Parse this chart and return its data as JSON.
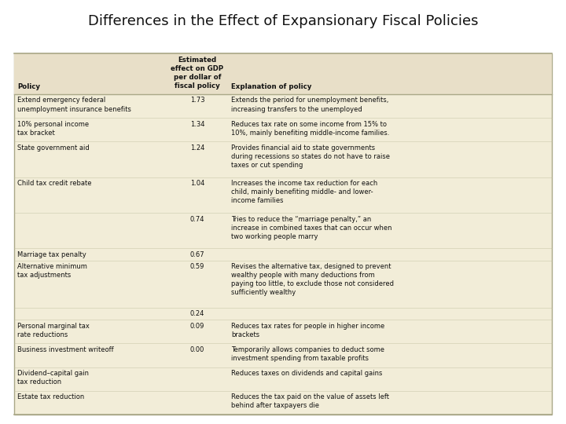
{
  "title": "Differences in the Effect of Expansionary Fiscal Policies",
  "title_fontsize": 13,
  "background_color": "#ffffff",
  "header_bg": "#e8dfc8",
  "table_bg": "#f2edd8",
  "col1_header": "Policy",
  "col2_header": "Estimated\neffect on GDP\nper dollar of\nfiscal policy",
  "col3_header": "Explanation of policy",
  "rows": [
    {
      "policy": "Extend emergency federal\nunemployment insurance benefits",
      "value": "1.73",
      "explanation": "Extends the period for unemployment benefits,\nincreasing transfers to the unemployed"
    },
    {
      "policy": "10% personal income\ntax bracket",
      "value": "1.34",
      "explanation": "Reduces tax rate on some income from 15% to\n10%, mainly benefiting middle-income families."
    },
    {
      "policy": "State government aid",
      "value": "1.24",
      "explanation": "Provides financial aid to state governments\nduring recessions so states do not have to raise\ntaxes or cut spending"
    },
    {
      "policy": "Child tax credit rebate",
      "value": "1.04",
      "explanation": "Increases the income tax reduction for each\nchild, mainly benefiting middle- and lower-\nincome families"
    },
    {
      "policy": "",
      "value": "0.74",
      "explanation": "Tries to reduce the “marriage penalty,” an\nincrease in combined taxes that can occur when\ntwo working people marry"
    },
    {
      "policy": "Marriage tax penalty",
      "value": "0.67",
      "explanation": ""
    },
    {
      "policy": "Alternative minimum\ntax adjustments",
      "value": "0.59",
      "explanation": "Revises the alternative tax, designed to prevent\nwealthy people with many deductions from\npaying too little, to exclude those not considered\nsufficiently wealthy"
    },
    {
      "policy": "",
      "value": "0.24",
      "explanation": ""
    },
    {
      "policy": "Personal marginal tax\nrate reductions",
      "value": "0.09",
      "explanation": "Reduces tax rates for people in higher income\nbrackets"
    },
    {
      "policy": "Business investment writeoff",
      "value": "0.00",
      "explanation": "Temporarily allows companies to deduct some\ninvestment spending from taxable profits"
    },
    {
      "policy": "Dividend–capital gain\ntax reduction",
      "value": "",
      "explanation": "Reduces taxes on dividends and capital gains"
    },
    {
      "policy": "Estate tax reduction",
      "value": "",
      "explanation": "Reduces the tax paid on the value of assets left\nbehind after taxpayers die"
    }
  ]
}
